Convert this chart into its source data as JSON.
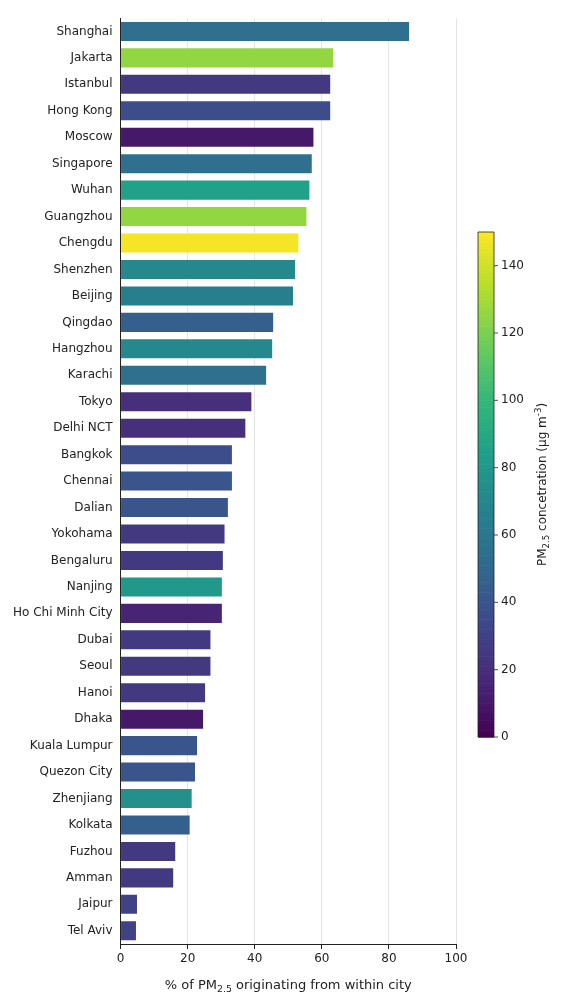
{
  "chart_data": {
    "type": "bar",
    "orientation": "horizontal",
    "categories": [
      "Shanghai",
      "Jakarta",
      "Istanbul",
      "Hong Kong",
      "Moscow",
      "Singapore",
      "Wuhan",
      "Guangzhou",
      "Chengdu",
      "Shenzhen",
      "Beijing",
      "Qingdao",
      "Hangzhou",
      "Karachi",
      "Tokyo",
      "Delhi NCT",
      "Bangkok",
      "Chennai",
      "Dalian",
      "Yokohama",
      "Bengaluru",
      "Nanjing",
      "Ho Chi Minh City",
      "Dubai",
      "Seoul",
      "Hanoi",
      "Dhaka",
      "Kuala Lumpur",
      "Quezon City",
      "Zhenjiang",
      "Kolkata",
      "Fuzhou",
      "Amman",
      "Jaipur",
      "Tel Aviv"
    ],
    "values": [
      86,
      63.4,
      62.5,
      62.5,
      57.5,
      57,
      56.3,
      55.4,
      53,
      52,
      51.4,
      45.5,
      45.2,
      43.4,
      39,
      37.2,
      33.2,
      33.2,
      32,
      31,
      30.5,
      30.2,
      30.2,
      26.8,
      26.8,
      25.2,
      24.6,
      22.8,
      22.2,
      21.2,
      20.6,
      16.3,
      15.7,
      4.9,
      4.6
    ],
    "cvalues": [
      55,
      125,
      25,
      35,
      10,
      55,
      85,
      125,
      148,
      70,
      65,
      45,
      70,
      55,
      20,
      20,
      35,
      40,
      40,
      25,
      25,
      80,
      15,
      25,
      25,
      25,
      10,
      40,
      40,
      75,
      45,
      25,
      25,
      30,
      30
    ],
    "clim": [
      0,
      150
    ],
    "cticks": [
      0,
      20,
      40,
      60,
      80,
      100,
      120,
      140
    ],
    "clabel": "PM$_{2.5}$ concetration (µg m$^{-3}$)",
    "xlabel": "% of PM$_{2.5}$ originating from within city",
    "xlim": [
      0,
      100
    ],
    "xticks": [
      0,
      20,
      40,
      60,
      80,
      100
    ],
    "grid": "x",
    "legend": false
  }
}
